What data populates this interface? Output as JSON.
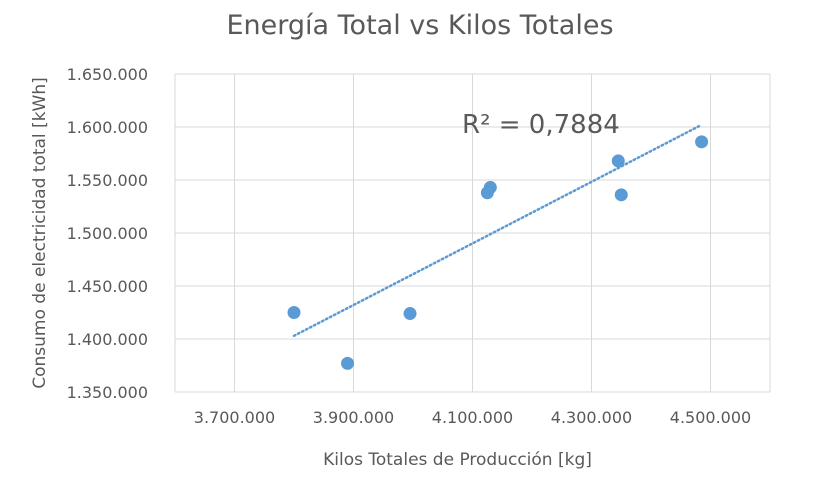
{
  "chart_data": {
    "type": "scatter",
    "title": "Energía Total vs Kilos Totales",
    "xlabel": "Kilos Totales de Producción [kg]",
    "ylabel": "Consumo de electricidad total [kWh]",
    "xlim": [
      3600000,
      4600000
    ],
    "ylim": [
      1350000,
      1650000
    ],
    "x_ticks": [
      3700000,
      3900000,
      4100000,
      4300000,
      4500000
    ],
    "x_tick_labels": [
      "3.700.000",
      "3.900.000",
      "4.100.000",
      "4.300.000",
      "4.500.000"
    ],
    "y_ticks": [
      1350000,
      1400000,
      1450000,
      1500000,
      1550000,
      1600000,
      1650000
    ],
    "y_tick_labels": [
      "1.350.000",
      "1.400.000",
      "1.450.000",
      "1.500.000",
      "1.550.000",
      "1.600.000",
      "1.650.000"
    ],
    "grid": true,
    "series": [
      {
        "color": "#5b9bd5",
        "points": [
          {
            "x": 3800000,
            "y": 1425000
          },
          {
            "x": 3890000,
            "y": 1377000
          },
          {
            "x": 3995000,
            "y": 1424000
          },
          {
            "x": 4125000,
            "y": 1538000
          },
          {
            "x": 4130000,
            "y": 1543000
          },
          {
            "x": 4345000,
            "y": 1568000
          },
          {
            "x": 4350000,
            "y": 1536000
          },
          {
            "x": 4485000,
            "y": 1586000
          }
        ]
      }
    ],
    "trendline": {
      "type": "linear",
      "style": "dotted",
      "color": "#5b9bd5",
      "x_start": 3800000,
      "y_start": 1403000,
      "x_end": 4485000,
      "y_end": 1602000
    },
    "annotation": "R² = 0,7884"
  }
}
